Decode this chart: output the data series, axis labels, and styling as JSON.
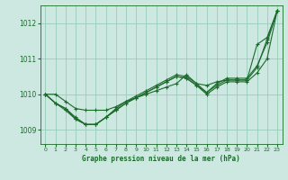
{
  "title": "Graphe pression niveau de la mer (hPa)",
  "bg_color": "#cce8e0",
  "grid_color": "#99ccbb",
  "line_color": "#1a6b2a",
  "ylim": [
    1008.6,
    1012.5
  ],
  "xlim": [
    -0.5,
    23.5
  ],
  "yticks": [
    1009,
    1010,
    1011,
    1012
  ],
  "xticks": [
    0,
    1,
    2,
    3,
    4,
    5,
    6,
    7,
    8,
    9,
    10,
    11,
    12,
    13,
    14,
    15,
    16,
    17,
    18,
    19,
    20,
    21,
    22,
    23
  ],
  "series": [
    [
      1010.0,
      1010.0,
      1009.8,
      1009.6,
      1009.55,
      1009.55,
      1009.55,
      1009.65,
      1009.8,
      1009.9,
      1010.0,
      1010.1,
      1010.2,
      1010.3,
      1010.55,
      1010.3,
      1010.25,
      1010.35,
      1010.4,
      1010.4,
      1010.4,
      1010.75,
      1011.55,
      1012.35
    ],
    [
      1010.0,
      1009.75,
      1009.6,
      1009.35,
      1009.15,
      1009.15,
      1009.35,
      1009.6,
      1009.8,
      1009.95,
      1010.1,
      1010.25,
      1010.4,
      1010.55,
      1010.5,
      1010.3,
      1010.05,
      1010.3,
      1010.45,
      1010.45,
      1010.45,
      1010.8,
      1011.45,
      1012.35
    ],
    [
      1010.0,
      1009.75,
      1009.6,
      1009.3,
      1009.15,
      1009.15,
      1009.35,
      1009.55,
      1009.75,
      1009.9,
      1010.05,
      1010.2,
      1010.35,
      1010.5,
      1010.45,
      1010.25,
      1010.05,
      1010.25,
      1010.4,
      1010.4,
      1010.4,
      1011.4,
      1011.6,
      1012.35
    ],
    [
      1010.0,
      1009.75,
      1009.55,
      1009.3,
      1009.15,
      1009.15,
      1009.35,
      1009.55,
      1009.75,
      1009.9,
      1010.05,
      1010.2,
      1010.35,
      1010.5,
      1010.45,
      1010.25,
      1010.0,
      1010.2,
      1010.35,
      1010.35,
      1010.35,
      1010.6,
      1011.0,
      1012.35
    ]
  ]
}
